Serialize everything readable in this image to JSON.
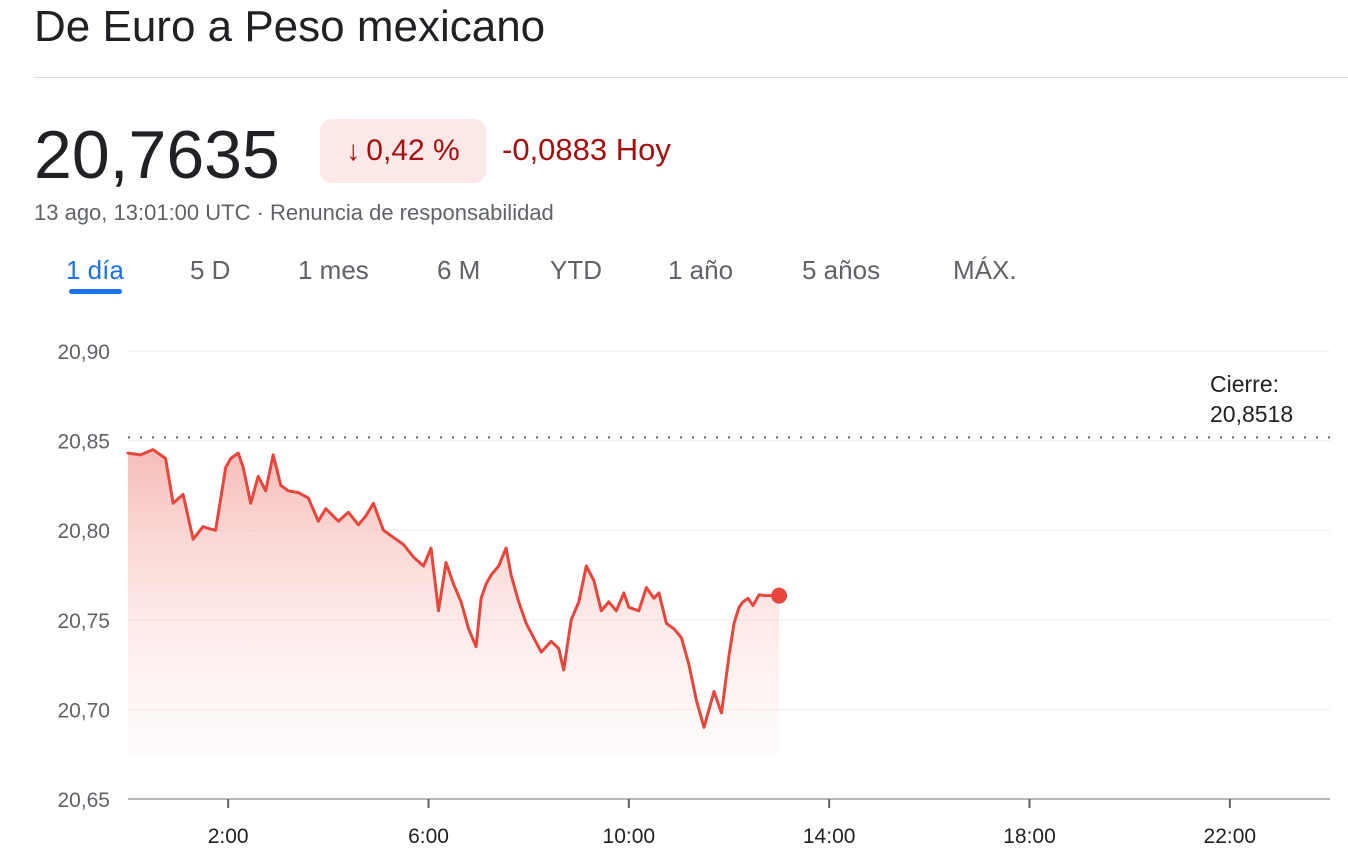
{
  "header": {
    "title": "De Euro a Peso mexicano"
  },
  "quote": {
    "price": "20,7635",
    "percent_change": "0,42 %",
    "abs_change": "-0,0883 Hoy",
    "timestamp": "13 ago, 13:01:00 UTC · ",
    "disclaimer": "Renuncia de responsabilidad",
    "direction_icon": "arrow-down-icon",
    "negative_color": "#a50e0e",
    "negative_bg": "#fce8e6"
  },
  "tabs": [
    {
      "label": "1 día",
      "active": true
    },
    {
      "label": "5 D"
    },
    {
      "label": "1 mes"
    },
    {
      "label": "6 M"
    },
    {
      "label": "YTD"
    },
    {
      "label": "1 año"
    },
    {
      "label": "5 años"
    },
    {
      "label": "MÁX."
    }
  ],
  "chart_data": {
    "type": "area",
    "x_unit": "hours UTC",
    "xlim": [
      0,
      24
    ],
    "ylim": [
      20.65,
      20.9
    ],
    "y_ticks": [
      "20,90",
      "20,85",
      "20,80",
      "20,75",
      "20,70",
      "20,65"
    ],
    "y_tick_values": [
      20.9,
      20.85,
      20.8,
      20.75,
      20.7,
      20.65
    ],
    "x_ticks": [
      "2:00",
      "6:00",
      "10:00",
      "14:00",
      "18:00",
      "22:00"
    ],
    "x_tick_values": [
      2,
      6,
      10,
      14,
      18,
      22
    ],
    "previous_close_label": "Cierre:",
    "previous_close_value": "20,8518",
    "previous_close": 20.8518,
    "line_color": "#e8453c",
    "grid": true,
    "series": [
      {
        "x": [
          0,
          0.25,
          0.5,
          0.75,
          0.9,
          1.1,
          1.3,
          1.5,
          1.6,
          1.75,
          1.95,
          2.05,
          2.2,
          2.3,
          2.45,
          2.6,
          2.75,
          2.9,
          3.05,
          3.2,
          3.4,
          3.6,
          3.8,
          3.95,
          4.2,
          4.4,
          4.6,
          4.75,
          4.9,
          5.1,
          5.35,
          5.5,
          5.7,
          5.9,
          6.05,
          6.2,
          6.35,
          6.5,
          6.65,
          6.8,
          6.95,
          7.05,
          7.15,
          7.25,
          7.4,
          7.55,
          7.65,
          7.8,
          7.95,
          8.1,
          8.25,
          8.45,
          8.6,
          8.7,
          8.85,
          9.0,
          9.15,
          9.3,
          9.45,
          9.6,
          9.75,
          9.9,
          10.0,
          10.2,
          10.35,
          10.5,
          10.6,
          10.75,
          10.9,
          11.05,
          11.2,
          11.35,
          11.5,
          11.7,
          11.85,
          12.0,
          12.1,
          12.2,
          12.28,
          12.38,
          12.48,
          12.6,
          12.72,
          12.85,
          13.0
        ],
        "y": [
          20.843,
          20.842,
          20.845,
          20.84,
          20.815,
          20.82,
          20.795,
          20.802,
          20.801,
          20.8,
          20.835,
          20.84,
          20.843,
          20.835,
          20.815,
          20.83,
          20.822,
          20.842,
          20.825,
          20.822,
          20.821,
          20.818,
          20.805,
          20.812,
          20.805,
          20.81,
          20.803,
          20.808,
          20.815,
          20.8,
          20.795,
          20.792,
          20.785,
          20.78,
          20.79,
          20.755,
          20.782,
          20.77,
          20.76,
          20.745,
          20.735,
          20.762,
          20.77,
          20.775,
          20.78,
          20.79,
          20.775,
          20.76,
          20.748,
          20.74,
          20.732,
          20.738,
          20.734,
          20.722,
          20.75,
          20.76,
          20.78,
          20.772,
          20.755,
          20.76,
          20.755,
          20.765,
          20.757,
          20.755,
          20.768,
          20.762,
          20.765,
          20.748,
          20.745,
          20.74,
          20.725,
          20.705,
          20.69,
          20.71,
          20.698,
          20.73,
          20.748,
          20.757,
          20.76,
          20.762,
          20.758,
          20.764,
          20.7635,
          20.7635,
          20.7635
        ]
      }
    ]
  }
}
